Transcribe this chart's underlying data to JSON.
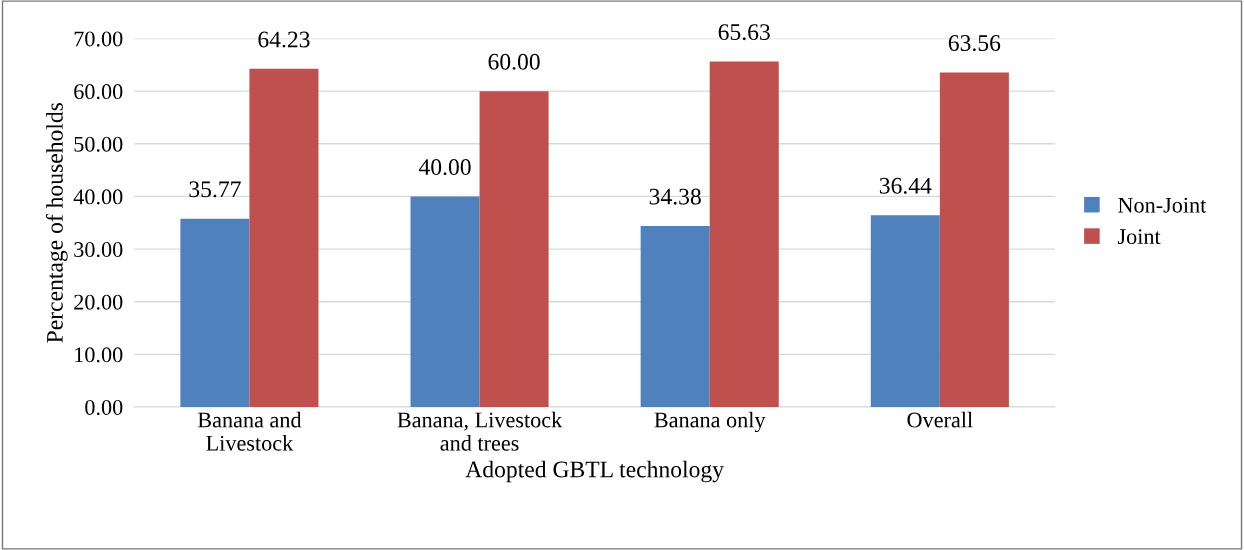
{
  "chart_data": {
    "type": "bar",
    "xlabel": "Adopted GBTL technology",
    "ylabel": "Percentage of households",
    "categories": [
      "Banana and\nLivestock",
      "Banana, Livestock\nand trees",
      "Banana only",
      "Overall"
    ],
    "series": [
      {
        "name": "Non-Joint",
        "color": "#4f81bd",
        "values": [
          35.77,
          40.0,
          34.38,
          36.44
        ]
      },
      {
        "name": "Joint",
        "color": "#c0504d",
        "values": [
          64.23,
          60.0,
          65.63,
          63.56
        ]
      }
    ],
    "value_labels": [
      [
        "35.77",
        "40.00",
        "34.38",
        "36.44"
      ],
      [
        "64.23",
        "60.00",
        "65.63",
        "63.56"
      ]
    ],
    "ylim": [
      0,
      70
    ],
    "yticks": [
      {
        "value": 0,
        "label": "0.00"
      },
      {
        "value": 10,
        "label": "10.00"
      },
      {
        "value": 20,
        "label": "20.00"
      },
      {
        "value": 30,
        "label": "30.00"
      },
      {
        "value": 40,
        "label": "40.00"
      },
      {
        "value": 50,
        "label": "50.00"
      },
      {
        "value": 60,
        "label": "60.00"
      },
      {
        "value": 70,
        "label": "70.00"
      }
    ],
    "grid": "y",
    "legend": "right"
  }
}
